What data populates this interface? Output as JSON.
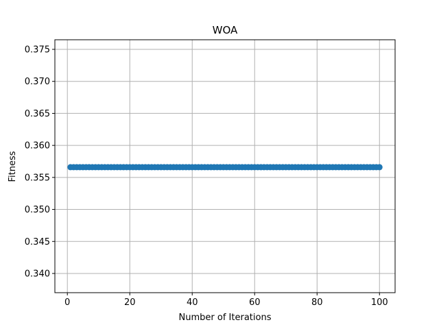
{
  "chart_data": {
    "type": "line",
    "title": "WOA",
    "xlabel": "Number of Iterations",
    "ylabel": "Fitness",
    "xlim": [
      -4.0,
      105.0
    ],
    "ylim": [
      0.337,
      0.3765
    ],
    "xticks": [
      0,
      20,
      40,
      60,
      80,
      100
    ],
    "xtick_labels": [
      "0",
      "20",
      "40",
      "60",
      "80",
      "100"
    ],
    "yticks": [
      0.34,
      0.345,
      0.35,
      0.355,
      0.36,
      0.365,
      0.37,
      0.375
    ],
    "ytick_labels": [
      "0.340",
      "0.345",
      "0.350",
      "0.355",
      "0.360",
      "0.365",
      "0.370",
      "0.375"
    ],
    "grid": true,
    "marker": "circle",
    "series": [
      {
        "color": "#1f77b4",
        "x_start": 1,
        "x_end": 100,
        "x_step": 1,
        "y_constant": 0.3566
      }
    ]
  }
}
